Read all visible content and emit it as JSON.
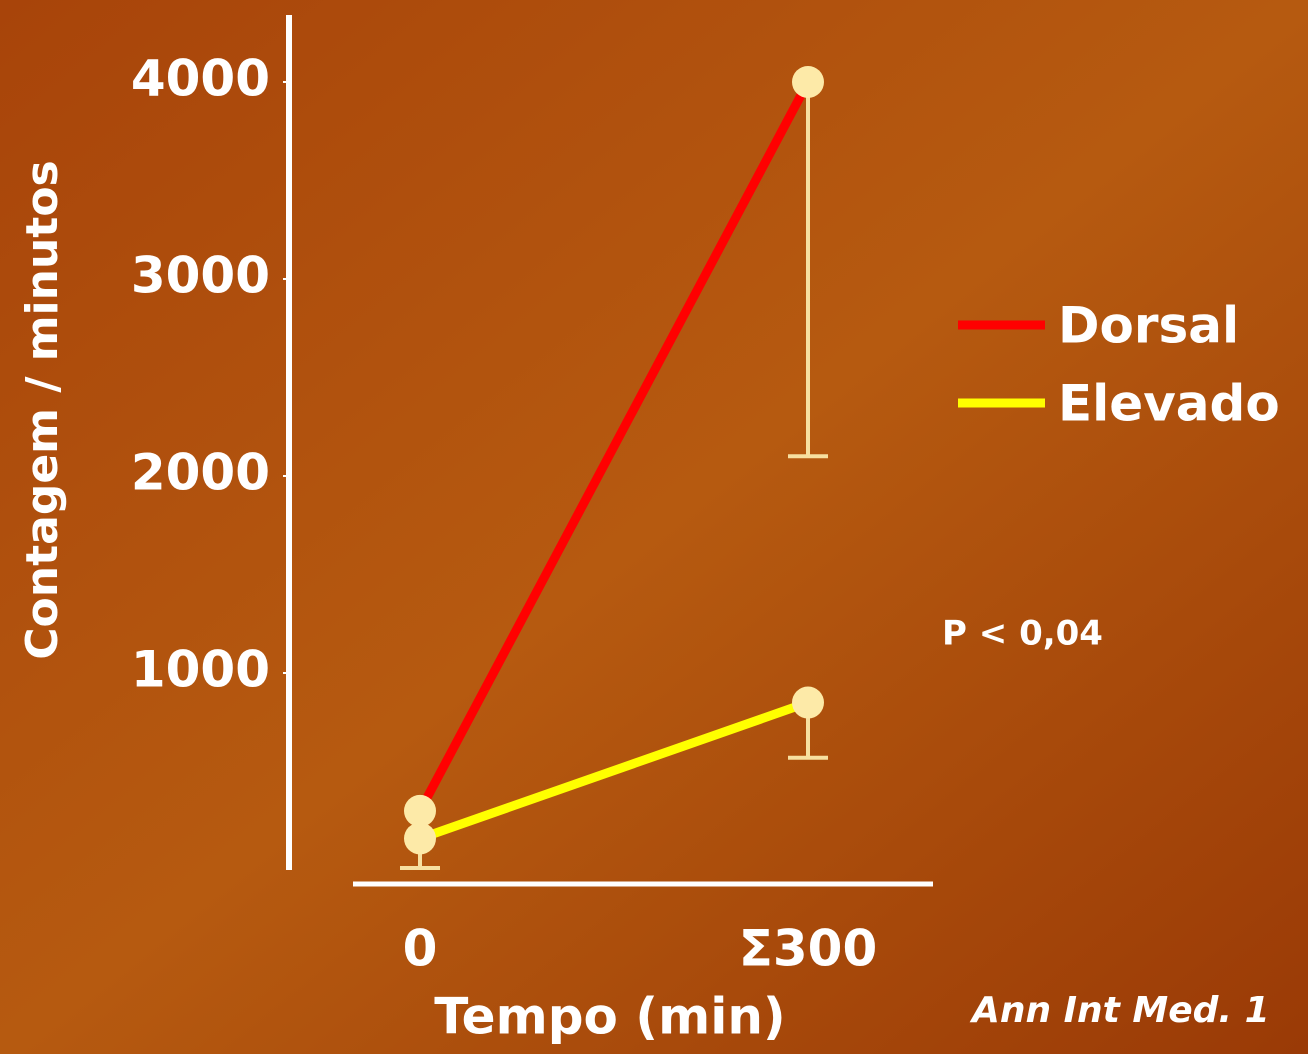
{
  "chart_data": {
    "type": "line",
    "categories": [
      "0",
      "Σ300"
    ],
    "x_label": "Tempo (min)",
    "y_label": "Contagem / minutos",
    "series": [
      {
        "name": "Dorsal",
        "color": "#ff0000",
        "values": [
          300,
          4000
        ],
        "errors": [
          null,
          1900
        ]
      },
      {
        "name": "Elevado",
        "color": "#ffff00",
        "values": [
          160,
          850
        ],
        "errors": [
          150,
          280
        ]
      }
    ],
    "ylim": [
      0,
      4340
    ],
    "yticks": [
      1000,
      2000,
      3000,
      4000
    ],
    "annotations": [
      "P < 0,04",
      "Ann Int Med. 1"
    ]
  }
}
